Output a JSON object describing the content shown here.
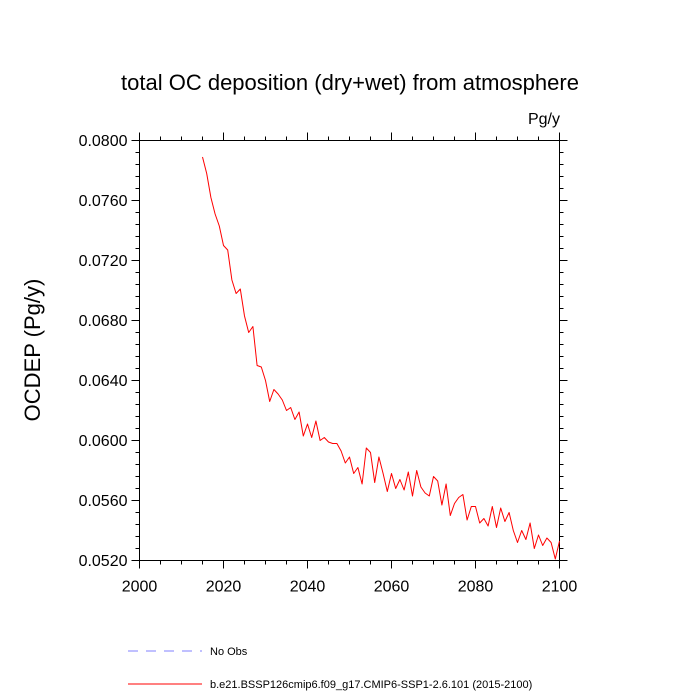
{
  "chart_data": {
    "type": "line",
    "title": "total OC deposition (dry+wet) from atmosphere",
    "units": "Pg/y",
    "xlabel": "",
    "ylabel": "OCDEP  (Pg/y)",
    "xlim": [
      2000,
      2100
    ],
    "ylim": [
      0.052,
      0.08
    ],
    "xticks": [
      2000,
      2020,
      2040,
      2060,
      2080,
      2100
    ],
    "xtick_labels": [
      "2000",
      "2020",
      "2040",
      "2060",
      "2080",
      "2100"
    ],
    "yticks": [
      0.052,
      0.056,
      0.06,
      0.064,
      0.068,
      0.072,
      0.076,
      0.08
    ],
    "ytick_labels": [
      "0.0520",
      "0.0560",
      "0.0600",
      "0.0640",
      "0.0680",
      "0.0720",
      "0.0760",
      "0.0800"
    ],
    "grid": false,
    "legend_position": "bottom",
    "series": [
      {
        "name": "No Obs",
        "color": "#8080ff",
        "style": "dashed",
        "x": [],
        "y": []
      },
      {
        "name": "b.e21.BSSP126cmip6.f09_g17.CMIP6-SSP1-2.6.101 (2015-2100)",
        "color": "#ff0000",
        "style": "solid",
        "x": [
          2015,
          2016,
          2017,
          2018,
          2019,
          2020,
          2021,
          2022,
          2023,
          2024,
          2025,
          2026,
          2027,
          2028,
          2029,
          2030,
          2031,
          2032,
          2033,
          2034,
          2035,
          2036,
          2037,
          2038,
          2039,
          2040,
          2041,
          2042,
          2043,
          2044,
          2045,
          2046,
          2047,
          2048,
          2049,
          2050,
          2051,
          2052,
          2053,
          2054,
          2055,
          2056,
          2057,
          2058,
          2059,
          2060,
          2061,
          2062,
          2063,
          2064,
          2065,
          2066,
          2067,
          2068,
          2069,
          2070,
          2071,
          2072,
          2073,
          2074,
          2075,
          2076,
          2077,
          2078,
          2079,
          2080,
          2081,
          2082,
          2083,
          2084,
          2085,
          2086,
          2087,
          2088,
          2089,
          2090,
          2091,
          2092,
          2093,
          2094,
          2095,
          2096,
          2097,
          2098,
          2099,
          2100
        ],
        "y": [
          0.0789,
          0.0778,
          0.0762,
          0.0751,
          0.0743,
          0.073,
          0.0727,
          0.0707,
          0.0698,
          0.0701,
          0.0683,
          0.0672,
          0.0676,
          0.065,
          0.0649,
          0.064,
          0.0626,
          0.0634,
          0.0631,
          0.0627,
          0.062,
          0.0622,
          0.0614,
          0.0619,
          0.0603,
          0.0611,
          0.0602,
          0.0613,
          0.06,
          0.0602,
          0.0599,
          0.0598,
          0.0598,
          0.0593,
          0.0585,
          0.0589,
          0.0578,
          0.0582,
          0.0571,
          0.0595,
          0.0592,
          0.0572,
          0.0589,
          0.0578,
          0.0566,
          0.0578,
          0.0568,
          0.0574,
          0.0567,
          0.0579,
          0.0563,
          0.058,
          0.0569,
          0.0565,
          0.0563,
          0.0576,
          0.0573,
          0.0557,
          0.0571,
          0.055,
          0.0558,
          0.0562,
          0.0564,
          0.0547,
          0.0556,
          0.0556,
          0.0545,
          0.0548,
          0.0543,
          0.0556,
          0.0542,
          0.0555,
          0.0546,
          0.0552,
          0.054,
          0.0532,
          0.054,
          0.0534,
          0.0545,
          0.0528,
          0.0537,
          0.053,
          0.0535,
          0.0532,
          0.0521,
          0.0533
        ]
      }
    ]
  }
}
